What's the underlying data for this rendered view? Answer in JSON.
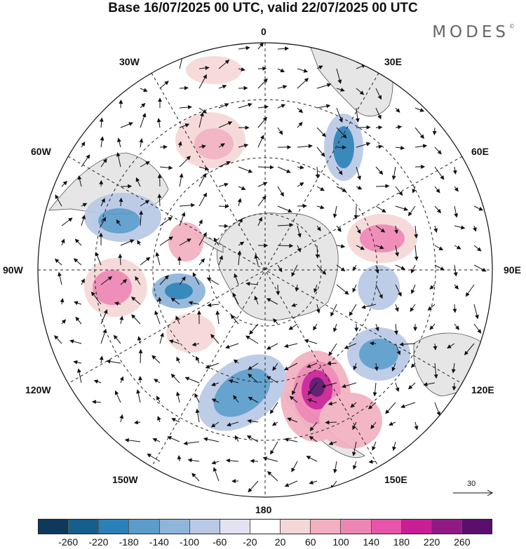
{
  "title": "Base 16/07/2025 00 UTC, valid 22/07/2025 00 UTC",
  "brand": "MODES",
  "brand_mark": "©",
  "map": {
    "projection": "south-polar-stereographic",
    "longitude_labels": {
      "top": "0",
      "top_left": "30W",
      "top_right": "30E",
      "upper_left": "60W",
      "upper_right": "60E",
      "left": "90W",
      "right": "90E",
      "lower_left": "120W",
      "lower_right": "120E",
      "bottom_left": "150W",
      "bottom_right": "150E",
      "bottom": "180"
    },
    "reference_vector": "30",
    "colors": {
      "land": "#e6e6e6",
      "ocean": "#ffffff",
      "grid": "#222222"
    }
  },
  "colorbar": {
    "ticks": [
      "-260",
      "-220",
      "-180",
      "-140",
      "-100",
      "-60",
      "-20",
      "20",
      "60",
      "100",
      "140",
      "180",
      "220",
      "260"
    ],
    "colors": [
      "#0d3a5c",
      "#155f8c",
      "#2a80b8",
      "#5b9ccb",
      "#8fb5da",
      "#b9c9e6",
      "#e2e2f0",
      "#ffffff",
      "#f6d7d7",
      "#f2b0c0",
      "#ee86b4",
      "#e655a9",
      "#c91f95",
      "#921983",
      "#5a0f6c"
    ]
  }
}
